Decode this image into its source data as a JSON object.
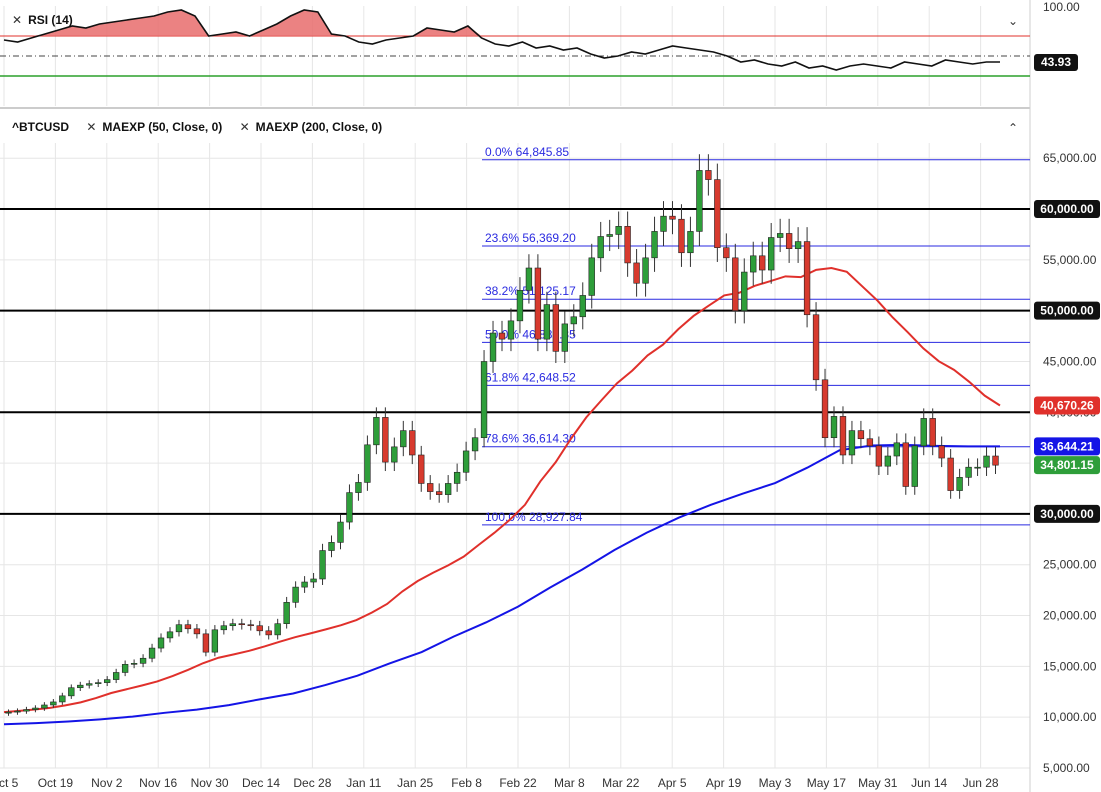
{
  "rsi_panel": {
    "indicator_label": "RSI (14)",
    "current_value": "43.93",
    "top_tick": "100.00",
    "overbought": 70,
    "oversold": 30,
    "mid": 50,
    "collapse_icon": "chevron-down-icon"
  },
  "main_panel": {
    "symbol_label": "^BTCUSD",
    "studies": [
      {
        "label": "MAEXP (50, Close, 0)",
        "color": "#e0302b"
      },
      {
        "label": "MAEXP (200, Close, 0)",
        "color": "#1414e6"
      }
    ],
    "collapse_icon": "chevron-up-icon"
  },
  "chart_data": {
    "type": "candlestick",
    "ylim": [
      5000,
      66500
    ],
    "y_ticks": [
      5000,
      10000,
      15000,
      20000,
      25000,
      30000,
      35000,
      40000,
      45000,
      50000,
      55000,
      60000,
      65000
    ],
    "y_tick_labels": [
      "5,000.00",
      "10,000.00",
      "15,000.00",
      "20,000.00",
      "25,000.00",
      "30,000.00",
      "35,000.00",
      "40,000.00",
      "45,000.00",
      "50,000.00",
      "55,000.00",
      "60,000.00",
      "65,000.00"
    ],
    "x_tick_labels": [
      "Oct 5",
      "Oct 19",
      "Nov 2",
      "Nov 16",
      "Nov 30",
      "Dec 14",
      "Dec 28",
      "Jan 11",
      "Jan 25",
      "Feb 8",
      "Feb 22",
      "Mar 8",
      "Mar 22",
      "Apr 5",
      "Apr 19",
      "May 3",
      "May 17",
      "May 31",
      "Jun 14",
      "Jun 28"
    ],
    "horizontal_lines": [
      30000,
      40000,
      50000,
      60000
    ],
    "fibonacci": [
      {
        "label": "0.0% 64,845.85",
        "value": 64845.85
      },
      {
        "label": "23.6% 56,369.20",
        "value": 56369.2
      },
      {
        "label": "38.2% 51,125.17",
        "value": 51125.17
      },
      {
        "label": "50.0% 46,886.85",
        "value": 46886.85
      },
      {
        "label": "61.8% 42,648.52",
        "value": 42648.52
      },
      {
        "label": "78.6% 36,614.30",
        "value": 36614.3
      },
      {
        "label": "100.0% 28,927.84",
        "value": 28927.84
      }
    ],
    "price_badges": [
      {
        "label": "60,000.00",
        "value": 60000,
        "kind": "level"
      },
      {
        "label": "50,000.00",
        "value": 50000,
        "kind": "level"
      },
      {
        "label": "40,670.26",
        "value": 40670.26,
        "kind": "ma50"
      },
      {
        "label": "36,644.21",
        "value": 36644.21,
        "kind": "ma200"
      },
      {
        "label": "34,801.15",
        "value": 34801.15,
        "kind": "last"
      },
      {
        "label": "30,000.00",
        "value": 30000,
        "kind": "level"
      }
    ],
    "price_series": [
      10500,
      10600,
      10750,
      10900,
      11200,
      11500,
      12100,
      12900,
      13150,
      13300,
      13400,
      13700,
      14400,
      15200,
      15300,
      15800,
      16800,
      17800,
      18400,
      19100,
      18700,
      18200,
      16400,
      18600,
      19000,
      19200,
      19100,
      19000,
      18500,
      18100,
      19200,
      21300,
      22800,
      23300,
      23600,
      26400,
      27200,
      29200,
      32100,
      33100,
      36800,
      39500,
      35100,
      36600,
      38200,
      35800,
      33000,
      32200,
      31900,
      33000,
      34100,
      36200,
      37500,
      45000,
      47800,
      47200,
      49000,
      52000,
      54200,
      47200,
      50600,
      46000,
      48700,
      49400,
      51500,
      55200,
      57300,
      57500,
      58300,
      54700,
      52700,
      55200,
      57800,
      59300,
      59000,
      55700,
      57800,
      63800,
      62900,
      56200,
      55200,
      50000,
      53800,
      55400,
      54000,
      57200,
      57600,
      56100,
      56800,
      49600,
      43200,
      37500,
      39600,
      35800,
      38200,
      37400,
      36700,
      34700,
      35700,
      37000,
      32700,
      36700,
      39400,
      36700,
      35500,
      32300,
      33600,
      34600,
      34600,
      35700,
      34800
    ],
    "ma50": [
      10500,
      10620,
      10760,
      10920,
      11160,
      11460,
      11880,
      12380,
      12750,
      13120,
      13520,
      14050,
      14650,
      15320,
      15850,
      16180,
      16530,
      16960,
      17430,
      17870,
      18250,
      18640,
      19050,
      19560,
      20290,
      21140,
      22380,
      23400,
      24210,
      24950,
      25800,
      26980,
      28140,
      29410,
      30900,
      33200,
      35080,
      37400,
      39500,
      41200,
      42850,
      44100,
      45600,
      46650,
      48170,
      49480,
      50500,
      51500,
      51770,
      52450,
      52900,
      53380,
      53300,
      54020,
      54200,
      53830,
      52410,
      51000,
      49330,
      47850,
      46290,
      45030,
      44180,
      42990,
      41640,
      40670
    ],
    "ma200": [
      9300,
      9420,
      9570,
      9790,
      10060,
      10430,
      10740,
      11190,
      11780,
      12330,
      13160,
      14080,
      15290,
      16410,
      17940,
      19320,
      20880,
      22760,
      24530,
      26450,
      28150,
      29630,
      30900,
      32000,
      33040,
      34550,
      36260,
      36730,
      36800,
      36700,
      36650,
      36644
    ],
    "rsi": [
      66,
      64,
      68,
      72,
      76,
      80,
      78,
      82,
      84,
      86,
      88,
      90,
      94,
      96,
      90,
      70,
      72,
      74,
      70,
      76,
      82,
      90,
      96,
      94,
      72,
      70,
      64,
      62,
      66,
      68,
      70,
      78,
      76,
      74,
      80,
      68,
      62,
      60,
      64,
      58,
      60,
      56,
      58,
      52,
      48,
      50,
      54,
      52,
      56,
      60,
      58,
      56,
      54,
      50,
      44,
      46,
      42,
      40,
      44,
      38,
      40,
      36,
      40,
      42,
      40,
      38,
      44,
      42,
      40,
      46,
      44,
      42,
      44,
      44
    ]
  }
}
